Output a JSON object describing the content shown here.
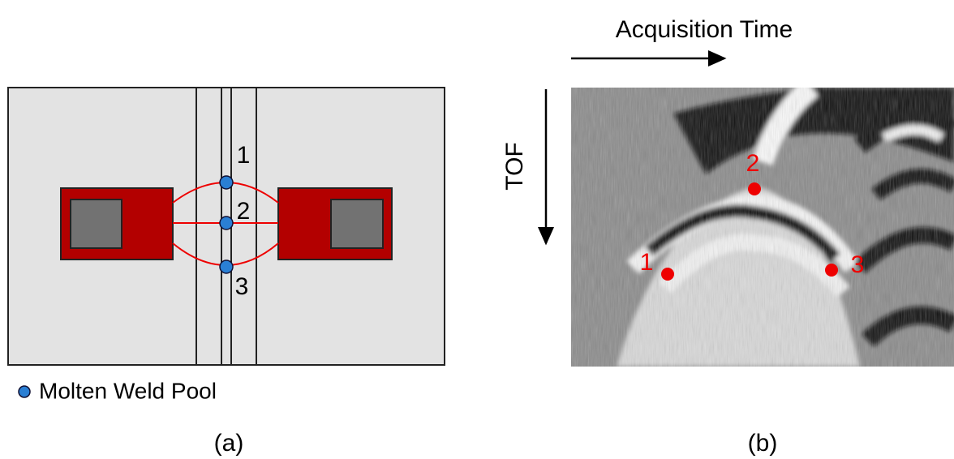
{
  "panel_a": {
    "points": [
      "1",
      "2",
      "3"
    ],
    "legend": "Molten Weld Pool",
    "caption": "(a)"
  },
  "panel_b": {
    "x_axis_label": "Acquisition Time",
    "y_axis_label": "TOF",
    "points": [
      "1",
      "2",
      "3"
    ],
    "caption": "(b)"
  }
}
